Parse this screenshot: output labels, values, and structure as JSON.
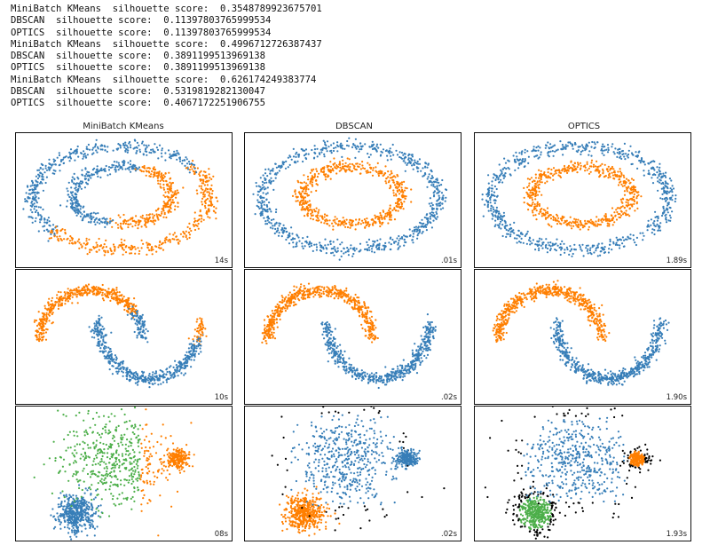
{
  "output_log": [
    "MiniBatch KMeans  silhouette score:  0.3548789923675701",
    "DBSCAN  silhouette score:  0.11397803765999534",
    "OPTICS  silhouette score:  0.11397803765999534",
    "MiniBatch KMeans  silhouette score:  0.4996712726387437",
    "DBSCAN  silhouette score:  0.3891199513969138",
    "OPTICS  silhouette score:  0.3891199513969138",
    "MiniBatch KMeans  silhouette score:  0.626174249383774",
    "DBSCAN  silhouette score:  0.5319819282130047",
    "OPTICS  silhouette score:  0.4067172251906755"
  ],
  "colors": {
    "blue": "#377eb8",
    "orange": "#ff7f00",
    "green": "#4daf4a",
    "noise": "#000000"
  },
  "chart_data": [
    {
      "type": "scatter",
      "title": "MiniBatch KMeans",
      "dataset": "circles",
      "annotation": "14s"
    },
    {
      "type": "scatter",
      "title": "DBSCAN",
      "dataset": "circles",
      "annotation": ".01s"
    },
    {
      "type": "scatter",
      "title": "OPTICS",
      "dataset": "circles",
      "annotation": "1.89s"
    },
    {
      "type": "scatter",
      "title": "",
      "dataset": "moons",
      "annotation": "10s"
    },
    {
      "type": "scatter",
      "title": "",
      "dataset": "moons",
      "annotation": ".02s"
    },
    {
      "type": "scatter",
      "title": "",
      "dataset": "moons",
      "annotation": "1.90s"
    },
    {
      "type": "scatter",
      "title": "",
      "dataset": "blobs",
      "annotation": "08s"
    },
    {
      "type": "scatter",
      "title": "",
      "dataset": "blobs",
      "annotation": ".02s"
    },
    {
      "type": "scatter",
      "title": "",
      "dataset": "blobs",
      "annotation": "1.93s"
    }
  ]
}
